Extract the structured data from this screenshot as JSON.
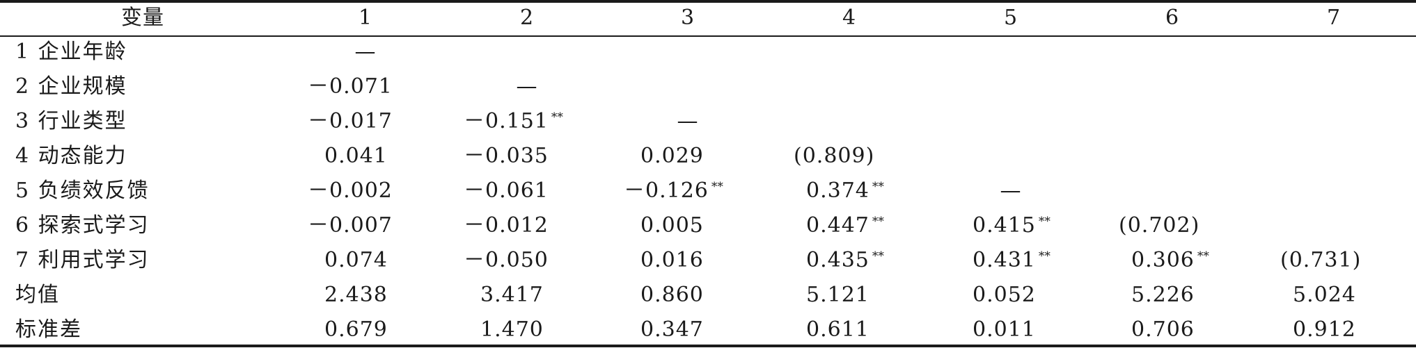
{
  "headers": [
    "变量",
    "1",
    "2",
    "3",
    "4",
    "5",
    "6",
    "7"
  ],
  "rows": [
    {
      "label": "1 企业年龄",
      "cells": [
        {
          "v": "—",
          "s": ""
        },
        {
          "v": "",
          "s": ""
        },
        {
          "v": "",
          "s": ""
        },
        {
          "v": "",
          "s": ""
        },
        {
          "v": "",
          "s": ""
        },
        {
          "v": "",
          "s": ""
        },
        {
          "v": "",
          "s": ""
        }
      ]
    },
    {
      "label": "2 企业规模",
      "cells": [
        {
          "v": "－0.071",
          "s": ""
        },
        {
          "v": "—",
          "s": ""
        },
        {
          "v": "",
          "s": ""
        },
        {
          "v": "",
          "s": ""
        },
        {
          "v": "",
          "s": ""
        },
        {
          "v": "",
          "s": ""
        },
        {
          "v": "",
          "s": ""
        }
      ]
    },
    {
      "label": "3 行业类型",
      "cells": [
        {
          "v": "－0.017",
          "s": ""
        },
        {
          "v": "－0.151",
          "s": "**"
        },
        {
          "v": "—",
          "s": ""
        },
        {
          "v": "",
          "s": ""
        },
        {
          "v": "",
          "s": ""
        },
        {
          "v": "",
          "s": ""
        },
        {
          "v": "",
          "s": ""
        }
      ]
    },
    {
      "label": "4 动态能力",
      "cells": [
        {
          "v": "0.041",
          "s": ""
        },
        {
          "v": "－0.035",
          "s": ""
        },
        {
          "v": "0.029",
          "s": ""
        },
        {
          "v": "(0.809)",
          "s": ""
        },
        {
          "v": "",
          "s": ""
        },
        {
          "v": "",
          "s": ""
        },
        {
          "v": "",
          "s": ""
        }
      ]
    },
    {
      "label": "5 负绩效反馈",
      "cells": [
        {
          "v": "－0.002",
          "s": ""
        },
        {
          "v": "－0.061",
          "s": ""
        },
        {
          "v": "－0.126",
          "s": "**"
        },
        {
          "v": "0.374",
          "s": "**"
        },
        {
          "v": "—",
          "s": ""
        },
        {
          "v": "",
          "s": ""
        },
        {
          "v": "",
          "s": ""
        }
      ]
    },
    {
      "label": "6 探索式学习",
      "cells": [
        {
          "v": "－0.007",
          "s": ""
        },
        {
          "v": "－0.012",
          "s": ""
        },
        {
          "v": "0.005",
          "s": ""
        },
        {
          "v": "0.447",
          "s": "**"
        },
        {
          "v": "0.415",
          "s": "**"
        },
        {
          "v": "(0.702)",
          "s": ""
        },
        {
          "v": "",
          "s": ""
        }
      ]
    },
    {
      "label": "7 利用式学习",
      "cells": [
        {
          "v": "0.074",
          "s": ""
        },
        {
          "v": "－0.050",
          "s": ""
        },
        {
          "v": "0.016",
          "s": ""
        },
        {
          "v": "0.435",
          "s": "**"
        },
        {
          "v": "0.431",
          "s": "**"
        },
        {
          "v": "0.306",
          "s": "**"
        },
        {
          "v": "(0.731)",
          "s": ""
        }
      ]
    },
    {
      "label": "均值",
      "cells": [
        {
          "v": "2.438",
          "s": ""
        },
        {
          "v": "3.417",
          "s": ""
        },
        {
          "v": "0.860",
          "s": ""
        },
        {
          "v": "5.121",
          "s": ""
        },
        {
          "v": "0.052",
          "s": ""
        },
        {
          "v": "5.226",
          "s": ""
        },
        {
          "v": "5.024",
          "s": ""
        }
      ]
    },
    {
      "label": "标准差",
      "cells": [
        {
          "v": "0.679",
          "s": ""
        },
        {
          "v": "1.470",
          "s": ""
        },
        {
          "v": "0.347",
          "s": ""
        },
        {
          "v": "0.611",
          "s": ""
        },
        {
          "v": "0.011",
          "s": ""
        },
        {
          "v": "0.706",
          "s": ""
        },
        {
          "v": "0.912",
          "s": ""
        }
      ]
    }
  ]
}
